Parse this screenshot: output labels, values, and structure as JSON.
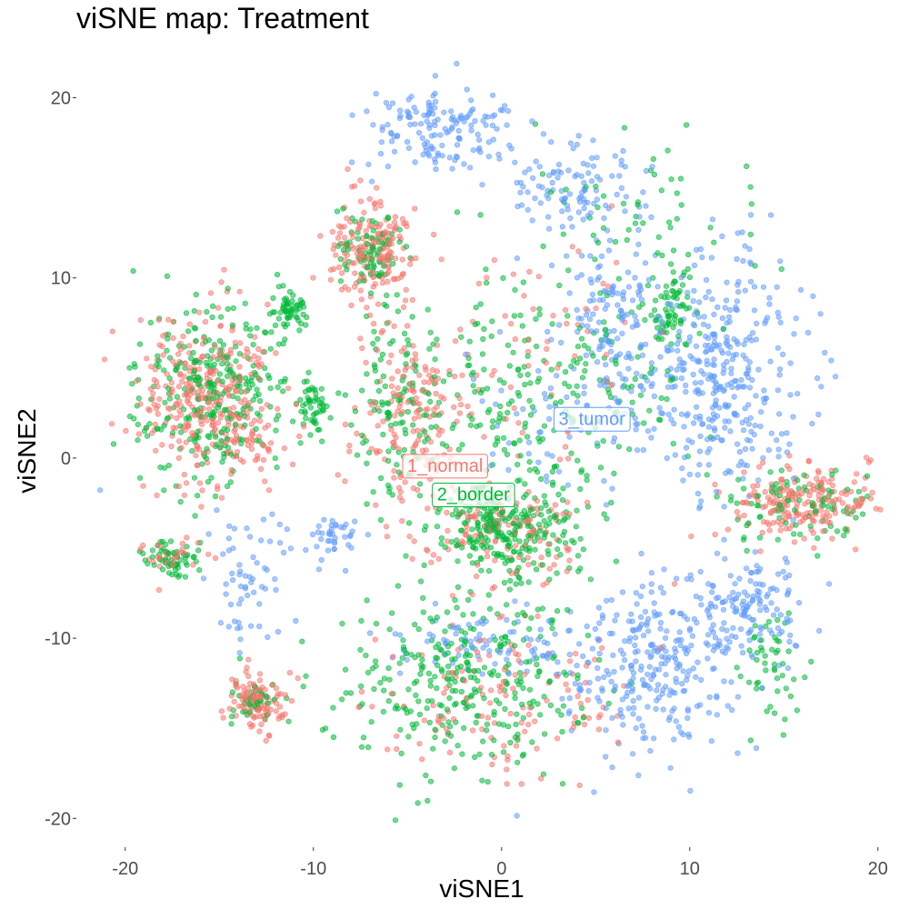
{
  "chart_data": {
    "type": "scatter",
    "title": "viSNE map: Treatment",
    "xlabel": "viSNE1",
    "ylabel": "viSNE2",
    "xlim": [
      -22.5,
      20.3
    ],
    "ylim": [
      -21.5,
      22.5
    ],
    "x_ticks": [
      -20,
      -10,
      0,
      10,
      20
    ],
    "y_ticks": [
      20,
      10,
      0,
      -10,
      -20
    ],
    "x_tick_labels": [
      "-20",
      "-10",
      "0",
      "10",
      "20"
    ],
    "y_tick_labels": [
      "20",
      "10",
      "0",
      "-10",
      "-20"
    ],
    "grid": false,
    "legend": "none",
    "point_alpha": 0.55,
    "series": [
      {
        "name": "1_normal",
        "color": "#F8766D",
        "label_position": [
          -3,
          -0.4
        ],
        "clusters": [
          {
            "center": [
              -15.5,
              3.5
            ],
            "spread": [
              1.8,
              2.4
            ],
            "count": 320
          },
          {
            "center": [
              -7.0,
              11.5
            ],
            "spread": [
              1.2,
              1.3
            ],
            "count": 180
          },
          {
            "center": [
              -13.0,
              -13.5
            ],
            "spread": [
              0.7,
              0.8
            ],
            "count": 110
          },
          {
            "center": [
              -5.0,
              2.5
            ],
            "spread": [
              1.5,
              3.0
            ],
            "count": 160
          },
          {
            "center": [
              0.0,
              -4.0
            ],
            "spread": [
              2.2,
              1.2
            ],
            "count": 120
          },
          {
            "center": [
              0.5,
              -13.0
            ],
            "spread": [
              3.5,
              2.5
            ],
            "count": 130
          },
          {
            "center": [
              16.0,
              -2.5
            ],
            "spread": [
              2.0,
              1.0
            ],
            "count": 200
          },
          {
            "center": [
              -17.5,
              -5.5
            ],
            "spread": [
              0.8,
              0.6
            ],
            "count": 30
          },
          {
            "center": [
              -13.2,
              0.8
            ],
            "spread": [
              0.6,
              0.6
            ],
            "count": 20
          },
          {
            "center": [
              1.5,
              5.5
            ],
            "spread": [
              3.0,
              3.5
            ],
            "count": 70
          }
        ]
      },
      {
        "name": "2_border",
        "color": "#00BA38",
        "label_position": [
          -1.5,
          -2.0
        ],
        "clusters": [
          {
            "center": [
              -15.5,
              3.5
            ],
            "spread": [
              2.0,
              2.4
            ],
            "count": 300
          },
          {
            "center": [
              -11.2,
              8.2
            ],
            "spread": [
              0.6,
              0.7
            ],
            "count": 60
          },
          {
            "center": [
              -10.0,
              3.0
            ],
            "spread": [
              0.4,
              0.8
            ],
            "count": 50
          },
          {
            "center": [
              -7.0,
              11.5
            ],
            "spread": [
              1.0,
              1.1
            ],
            "count": 80
          },
          {
            "center": [
              0.0,
              -4.0
            ],
            "spread": [
              2.0,
              1.2
            ],
            "count": 260
          },
          {
            "center": [
              -2.0,
              -12.5
            ],
            "spread": [
              3.0,
              2.5
            ],
            "count": 320
          },
          {
            "center": [
              2.0,
              3.0
            ],
            "spread": [
              3.5,
              3.5
            ],
            "count": 250
          },
          {
            "center": [
              9.0,
              8.0
            ],
            "spread": [
              0.6,
              1.5
            ],
            "count": 70
          },
          {
            "center": [
              -17.5,
              -5.5
            ],
            "spread": [
              0.7,
              0.6
            ],
            "count": 60
          },
          {
            "center": [
              -13.0,
              -13.5
            ],
            "spread": [
              0.6,
              0.7
            ],
            "count": 40
          },
          {
            "center": [
              -5.5,
              3.0
            ],
            "spread": [
              1.3,
              2.5
            ],
            "count": 110
          },
          {
            "center": [
              16.0,
              -2.5
            ],
            "spread": [
              2.2,
              1.0
            ],
            "count": 100
          },
          {
            "center": [
              7.0,
              13.5
            ],
            "spread": [
              3.0,
              2.0
            ],
            "count": 60
          },
          {
            "center": [
              14.5,
              -12.0
            ],
            "spread": [
              0.8,
              1.5
            ],
            "count": 50
          }
        ]
      },
      {
        "name": "3_tumor",
        "color": "#619CFF",
        "label_position": [
          4.8,
          2.2
        ],
        "clusters": [
          {
            "center": [
              -3.5,
              18.3
            ],
            "spread": [
              2.0,
              1.1
            ],
            "count": 150
          },
          {
            "center": [
              3.5,
              15.0
            ],
            "spread": [
              2.0,
              1.5
            ],
            "count": 110
          },
          {
            "center": [
              6.0,
              7.5
            ],
            "spread": [
              1.2,
              2.5
            ],
            "count": 120
          },
          {
            "center": [
              11.5,
              5.0
            ],
            "spread": [
              2.3,
              3.5
            ],
            "count": 380
          },
          {
            "center": [
              8.0,
              -11.5
            ],
            "spread": [
              2.3,
              2.3
            ],
            "count": 280
          },
          {
            "center": [
              13.0,
              -8.5
            ],
            "spread": [
              1.5,
              1.5
            ],
            "count": 140
          },
          {
            "center": [
              -1.0,
              -10.5
            ],
            "spread": [
              2.5,
              1.0
            ],
            "count": 80
          },
          {
            "center": [
              -9.0,
              -4.5
            ],
            "spread": [
              0.7,
              0.6
            ],
            "count": 40
          },
          {
            "center": [
              -13.5,
              -6.5
            ],
            "spread": [
              1.1,
              1.8
            ],
            "count": 60
          },
          {
            "center": [
              3.0,
              2.0
            ],
            "spread": [
              2.5,
              2.0
            ],
            "count": 60
          },
          {
            "center": [
              0.8,
              -20.0
            ],
            "spread": [
              0.1,
              0.1
            ],
            "count": 1
          },
          {
            "center": [
              -21.3,
              -1.8
            ],
            "spread": [
              0.05,
              0.05
            ],
            "count": 1
          }
        ]
      }
    ]
  }
}
